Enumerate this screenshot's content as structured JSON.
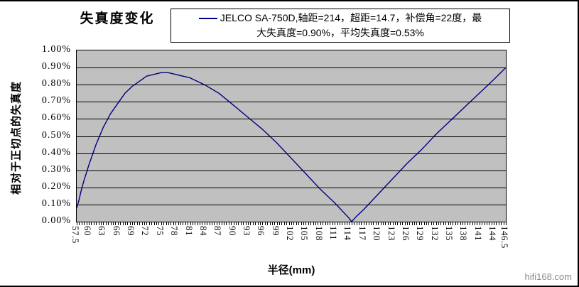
{
  "page": {
    "watermark": "hifi168.com"
  },
  "chart_data": {
    "type": "line",
    "title": "失真度变化",
    "xlabel": "半径(mm)",
    "ylabel": "相对于正切点的失真度",
    "plot_bg": "#c0c0c0",
    "grid": "horizontal",
    "legend": {
      "position": "top",
      "line1": "JELCO SA-750D,轴距=214，超距=14.7，补偿角=22度，最",
      "line2": "大失真度=0.90%，平均失真度=0.53%"
    },
    "x_axis": {
      "min": 57.5,
      "max": 146.5,
      "tick_step": 0.5,
      "labels": [
        "57.5",
        "60",
        "63",
        "66",
        "69",
        "72",
        "75",
        "78",
        "81",
        "84",
        "87",
        "90",
        "93",
        "96",
        "99",
        "102",
        "105",
        "108",
        "111",
        "114",
        "117",
        "120",
        "123",
        "126",
        "129",
        "132",
        "135",
        "138",
        "141",
        "144",
        "146.5"
      ]
    },
    "y_axis": {
      "min": 0,
      "max": 1.0,
      "labels": [
        "0.00%",
        "0.10%",
        "0.20%",
        "0.30%",
        "0.40%",
        "0.50%",
        "0.60%",
        "0.70%",
        "0.80%",
        "0.90%",
        "1.00%"
      ]
    },
    "series": [
      {
        "name": "JELCO SA-750D,轴距=214，超距=14.7，补偿角=22度，最大失真度=0.90%，平均失真度=0.53%",
        "color": "#000080",
        "points": [
          [
            57.5,
            0.08
          ],
          [
            58,
            0.13
          ],
          [
            58.5,
            0.19
          ],
          [
            59,
            0.24
          ],
          [
            60,
            0.33
          ],
          [
            61.5,
            0.45
          ],
          [
            63,
            0.55
          ],
          [
            64.5,
            0.63
          ],
          [
            66,
            0.69
          ],
          [
            67.5,
            0.75
          ],
          [
            69,
            0.79
          ],
          [
            70.5,
            0.82
          ],
          [
            72,
            0.85
          ],
          [
            73.5,
            0.86
          ],
          [
            75,
            0.87
          ],
          [
            76.5,
            0.87
          ],
          [
            78,
            0.86
          ],
          [
            81,
            0.84
          ],
          [
            84,
            0.8
          ],
          [
            87,
            0.75
          ],
          [
            90,
            0.68
          ],
          [
            93,
            0.61
          ],
          [
            96,
            0.54
          ],
          [
            99,
            0.46
          ],
          [
            102,
            0.37
          ],
          [
            105,
            0.28
          ],
          [
            108,
            0.19
          ],
          [
            111,
            0.11
          ],
          [
            114,
            0.02
          ],
          [
            114.5,
            0.0
          ],
          [
            115.5,
            0.03
          ],
          [
            117,
            0.07
          ],
          [
            120,
            0.16
          ],
          [
            123,
            0.25
          ],
          [
            126,
            0.34
          ],
          [
            129,
            0.42
          ],
          [
            132,
            0.51
          ],
          [
            135,
            0.59
          ],
          [
            138,
            0.67
          ],
          [
            141,
            0.75
          ],
          [
            144,
            0.83
          ],
          [
            146.5,
            0.9
          ]
        ]
      }
    ]
  }
}
